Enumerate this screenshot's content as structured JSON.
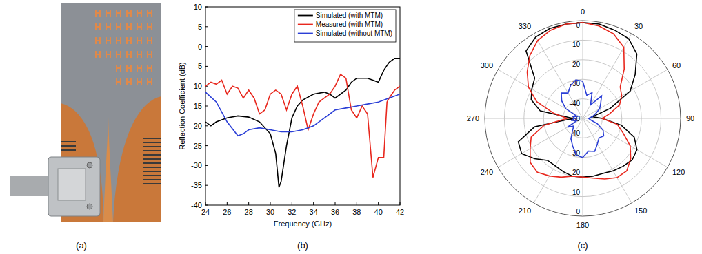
{
  "panel_labels": [
    "(a)",
    "(b)",
    "(c)"
  ],
  "chart_data": [
    {
      "type": "line",
      "x_label": "Frequency (GHz)",
      "y_label": "Reflection Coefficient (dB)",
      "xlim": [
        24,
        42
      ],
      "xticks": [
        24,
        26,
        28,
        30,
        32,
        34,
        36,
        38,
        40,
        42
      ],
      "ylim": [
        -40,
        10
      ],
      "yticks": [
        -40,
        -35,
        -30,
        -25,
        -20,
        -15,
        -10,
        -5,
        0,
        5,
        10
      ],
      "grid": false,
      "legend": "upper right",
      "series": [
        {
          "name": "Simulated (with MTM)",
          "color": "#000000",
          "x": [
            24,
            24.5,
            25,
            26,
            27,
            28,
            29,
            30,
            30.5,
            30.8,
            31,
            31.5,
            32,
            32.5,
            33,
            34,
            35,
            35.5,
            36,
            37,
            37.5,
            38,
            39,
            39.5,
            40,
            40.5,
            41,
            41.5,
            42
          ],
          "values": [
            -19,
            -20,
            -19,
            -18,
            -17.5,
            -17.8,
            -19,
            -22,
            -27,
            -35.5,
            -34,
            -25,
            -18,
            -15,
            -13.5,
            -12,
            -11.5,
            -12,
            -13,
            -11,
            -9,
            -8,
            -8,
            -8.5,
            -9,
            -6,
            -4,
            -3,
            -3
          ]
        },
        {
          "name": "Measured (with MTM)",
          "color": "#e8281e",
          "x": [
            24,
            24.5,
            25,
            25.5,
            26,
            26.5,
            27,
            27.5,
            28,
            28.5,
            29,
            29.5,
            30,
            30.5,
            31,
            31.5,
            32,
            32.5,
            33,
            33.5,
            34,
            34.5,
            35,
            35.5,
            36,
            36.5,
            37,
            37.5,
            38,
            38.5,
            39,
            39.5,
            40,
            40.5,
            40.8,
            41,
            41.5,
            42
          ],
          "values": [
            -10,
            -9,
            -9.5,
            -8.5,
            -12,
            -10,
            -10.5,
            -13,
            -11,
            -13,
            -17,
            -16,
            -12,
            -11,
            -12,
            -16,
            -12,
            -10,
            -15,
            -21,
            -17,
            -14,
            -13,
            -12,
            -10,
            -7,
            -8,
            -16,
            -18,
            -15,
            -17,
            -33,
            -28,
            -28,
            -14,
            -13,
            -11,
            -10
          ]
        },
        {
          "name": "Simulated (without MTM)",
          "color": "#2b3fd6",
          "x": [
            24,
            25,
            26,
            27,
            27.5,
            28,
            29,
            30,
            31,
            32,
            33,
            34,
            35,
            36,
            37,
            38,
            39,
            40,
            41,
            42
          ],
          "values": [
            -11.5,
            -14,
            -19,
            -22.5,
            -22,
            -21,
            -20.5,
            -21,
            -21.5,
            -21.5,
            -21,
            -20,
            -18,
            -16,
            -15.5,
            -15,
            -14.5,
            -14,
            -13,
            -12
          ]
        }
      ]
    },
    {
      "type": "polar",
      "xlim": [
        0,
        360
      ],
      "xticks": [
        0,
        30,
        60,
        90,
        120,
        150,
        180,
        210,
        240,
        270,
        300,
        330
      ],
      "ylim": [
        -50,
        0
      ],
      "yticks": [
        -50,
        -40,
        -30,
        -20,
        -10,
        0
      ],
      "grid": true,
      "series": [
        {
          "color": "#000000",
          "x": [
            0,
            10,
            20,
            30,
            40,
            50,
            60,
            70,
            80,
            90,
            100,
            110,
            120,
            130,
            140,
            150,
            160,
            170,
            180,
            190,
            200,
            210,
            220,
            230,
            240,
            250,
            260,
            270,
            280,
            290,
            300,
            310,
            320,
            330,
            340,
            350
          ],
          "values": [
            -1,
            -1,
            -2,
            -3,
            -7,
            -15,
            -22,
            -35,
            -45,
            -40,
            -30,
            -22,
            -18,
            -17,
            -18,
            -19,
            -20,
            -20,
            -20,
            -20,
            -21,
            -22,
            -22,
            -18,
            -14,
            -15,
            -25,
            -45,
            -28,
            -22,
            -20,
            -18,
            -5,
            -2,
            -1,
            -1
          ]
        },
        {
          "color": "#e8281e",
          "x": [
            0,
            10,
            20,
            30,
            40,
            50,
            60,
            70,
            80,
            90,
            100,
            110,
            120,
            130,
            140,
            150,
            160,
            170,
            180,
            190,
            200,
            210,
            220,
            230,
            240,
            250,
            260,
            270,
            280,
            290,
            300,
            310,
            320,
            330,
            340,
            350
          ],
          "values": [
            -1,
            -2,
            -4,
            -8,
            -17,
            -25,
            -27,
            -30,
            -36,
            -40,
            -32,
            -28,
            -22,
            -18,
            -15,
            -15,
            -17,
            -19,
            -20,
            -20,
            -18,
            -16,
            -14,
            -15,
            -19,
            -22,
            -30,
            -42,
            -35,
            -25,
            -18,
            -13,
            -8,
            -4,
            -2,
            -1
          ]
        },
        {
          "color": "#2b3fd6",
          "x": [
            0,
            10,
            20,
            30,
            40,
            50,
            60,
            70,
            80,
            90,
            100,
            110,
            120,
            130,
            140,
            150,
            160,
            170,
            180,
            190,
            200,
            210,
            220,
            230,
            240,
            250,
            260,
            270,
            280,
            290,
            300,
            310,
            320,
            330,
            340,
            350
          ],
          "values": [
            -31,
            -38,
            -36,
            -42,
            -35,
            -38,
            -40,
            -43,
            -45,
            -47,
            -46,
            -42,
            -38,
            -36,
            -37,
            -35,
            -32,
            -33,
            -30,
            -31,
            -35,
            -38,
            -42,
            -44,
            -41,
            -47,
            -44,
            -46,
            -45,
            -47,
            -40,
            -36,
            -33,
            -35,
            -32,
            -30
          ]
        }
      ]
    }
  ]
}
